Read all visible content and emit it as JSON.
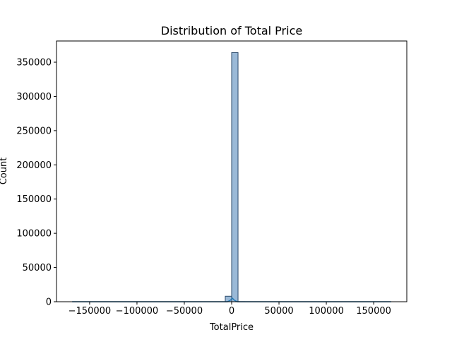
{
  "chart_data": {
    "type": "bar",
    "title": "Distribution of Total Price",
    "xlabel": "TotalPrice",
    "ylabel": "Count",
    "xlim": [
      -185000,
      185000
    ],
    "ylim": [
      0,
      381000
    ],
    "x_ticks": [
      -150000,
      -100000,
      -50000,
      0,
      50000,
      100000,
      150000
    ],
    "y_ticks": [
      0,
      50000,
      100000,
      150000,
      200000,
      250000,
      300000,
      350000
    ],
    "x_tick_labels": [
      "−150000",
      "−100000",
      "−50000",
      "0",
      "50000",
      "100000",
      "150000"
    ],
    "y_tick_labels": [
      "0",
      "50000",
      "100000",
      "150000",
      "200000",
      "250000",
      "300000",
      "350000"
    ],
    "grid": false,
    "bins": {
      "start": -168469.6,
      "end": 168469.6,
      "count": 50
    },
    "values": [
      1,
      0,
      0,
      0,
      0,
      0,
      0,
      0,
      0,
      0,
      0,
      0,
      0,
      0,
      0,
      0,
      0,
      0,
      0,
      0,
      0,
      0,
      0,
      0,
      8000,
      364000,
      50,
      10,
      5,
      3,
      2,
      1,
      1,
      1,
      0,
      0,
      0,
      0,
      0,
      0,
      0,
      0,
      0,
      0,
      0,
      0,
      0,
      0,
      0,
      1
    ],
    "kde": true,
    "colors": {
      "bar_fill": "#9ab9d7",
      "bar_edge": "#2b4a6a",
      "kde_line": "#1f77b4",
      "axes": "#000000"
    }
  }
}
